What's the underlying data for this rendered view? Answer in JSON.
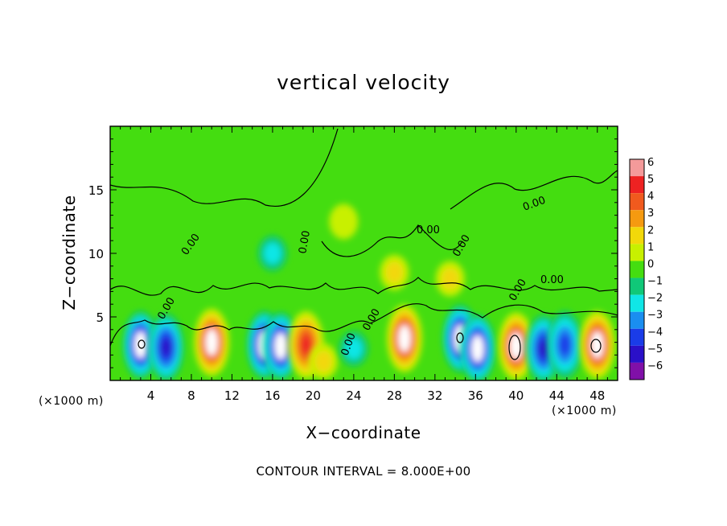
{
  "chart_data": {
    "type": "heatmap",
    "title": "vertical velocity",
    "xlabel": "X−coordinate",
    "ylabel": "Z−coordinate",
    "x_unit": "(×1000 m)",
    "xlim": [
      0,
      50
    ],
    "ylim": [
      0,
      20
    ],
    "x_ticks": [
      4,
      8,
      12,
      16,
      20,
      24,
      28,
      32,
      36,
      40,
      44,
      48
    ],
    "y_ticks": [
      5,
      10,
      15
    ],
    "colorbar": {
      "levels": [
        6,
        5,
        4,
        3,
        2,
        1,
        0,
        -1,
        -2,
        -3,
        -4,
        -5,
        -6
      ],
      "labels": [
        "6",
        "5",
        "4",
        "3",
        "2",
        "1",
        "0",
        "−1",
        "−2",
        "−3",
        "−4",
        "−5",
        "−6"
      ],
      "colors": [
        "#f49a9a",
        "#ee2222",
        "#f05a1e",
        "#f59a10",
        "#f2d80a",
        "#c8f000",
        "#44dd10",
        "#10c878",
        "#10e6e6",
        "#1a8ef0",
        "#1a3ce8",
        "#2a10c8",
        "#8010a8"
      ],
      "range": [
        -6,
        6
      ]
    },
    "contour_interval_text": "CONTOUR INTERVAL = 8.000E+00",
    "contour_labels": [
      "0.00",
      "0.00",
      "0.00",
      "0.00",
      "0.00",
      "0.00",
      "0.00",
      "0.00",
      "0.00",
      "0.00"
    ],
    "cells": [
      {
        "x": 3.0,
        "z": 2.8,
        "w": -6
      },
      {
        "x": 5.5,
        "z": 2.6,
        "w": -5
      },
      {
        "x": 10.0,
        "z": 3.0,
        "w": 6
      },
      {
        "x": 15.2,
        "z": 2.8,
        "w": -6
      },
      {
        "x": 16.8,
        "z": 2.7,
        "w": -6
      },
      {
        "x": 19.3,
        "z": 2.8,
        "w": 5
      },
      {
        "x": 21.0,
        "z": 1.5,
        "w": 2
      },
      {
        "x": 24.0,
        "z": 2.5,
        "w": -2
      },
      {
        "x": 29.0,
        "z": 3.3,
        "w": 6
      },
      {
        "x": 34.5,
        "z": 3.3,
        "w": -6
      },
      {
        "x": 36.2,
        "z": 2.5,
        "w": -6
      },
      {
        "x": 40.0,
        "z": 2.7,
        "w": 6
      },
      {
        "x": 42.7,
        "z": 2.5,
        "w": -5
      },
      {
        "x": 44.8,
        "z": 2.8,
        "w": -4
      },
      {
        "x": 48.0,
        "z": 2.8,
        "w": 6
      },
      {
        "x": 28.0,
        "z": 8.5,
        "w": 2
      },
      {
        "x": 33.5,
        "z": 8.0,
        "w": 2
      },
      {
        "x": 16.0,
        "z": 10.0,
        "w": -2
      },
      {
        "x": 23.0,
        "z": 12.5,
        "w": 1
      }
    ]
  }
}
